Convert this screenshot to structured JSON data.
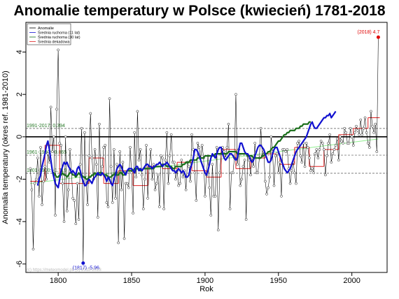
{
  "title": "Anomalie temperatury w Polsce (kwiecień) 1781-2018",
  "watermark": "(c) https://meteomodel.pl/ (c) 2018-2018",
  "colors": {
    "anomaly": "#000000",
    "ma11": "#1010d0",
    "ma30": "#1a6e1a",
    "decadal": "#e02020",
    "trend": "#90ee90",
    "refline": "#555555",
    "max_label": "#e00000",
    "min_label": "#1010d0"
  },
  "chart_data": {
    "type": "line",
    "title": "Anomalie temperatury w Polsce (kwiecień) 1781-2018",
    "xlabel": "Rok",
    "ylabel": "Anomalia temperatury (okres ref. 1981-2010)",
    "xlim": [
      1778,
      2024
    ],
    "ylim": [
      -6.4,
      5.4
    ],
    "xticks": [
      1800,
      1850,
      1900,
      1950,
      2000
    ],
    "yticks": [
      -6,
      -4,
      -2,
      0,
      2,
      4
    ],
    "grid": false,
    "legend_position": "top-left",
    "legend": [
      "Anomalie",
      "Średnia ruchoma (11 lat)",
      "Średnia ruchoma (30 lat)",
      "Średnia dekadowa"
    ],
    "zero_line": 0,
    "reference_lines": [
      {
        "label": "1991-2017: 0.394",
        "value": 0.394
      },
      {
        "label": "1961-1990: -0.865",
        "value": -0.865
      },
      {
        "label": "1801-1900: -1.719",
        "value": -1.719
      }
    ],
    "annotations": [
      {
        "label": "(2018) 4.7",
        "x": 2018,
        "y": 4.7,
        "kind": "max"
      },
      {
        "label": "(1817) -5.96",
        "x": 1817,
        "y": -5.96,
        "kind": "min"
      }
    ],
    "trend": {
      "start": [
        1781,
        -2.2
      ],
      "end": [
        2018,
        -0.1
      ]
    },
    "series": [
      {
        "name": "Anomalie",
        "kind": "anomaly",
        "x_start": 1781,
        "values": [
          -1.5,
          -2.5,
          -5.3,
          -2.2,
          -2.0,
          -1.0,
          -2.8,
          -0.5,
          -3.2,
          -2.1,
          -1.4,
          -2.0,
          -0.8,
          -1.2,
          1.4,
          -0.7,
          0.0,
          -3.7,
          1.3,
          4.1,
          -0.3,
          -0.4,
          -2.2,
          -4.0,
          0.0,
          -3.5,
          -2.5,
          -0.6,
          -1.6,
          -2.9,
          -3.0,
          -4.1,
          -2.2,
          -3.9,
          -1.3,
          0.4,
          -5.96,
          0.2,
          -2.2,
          -3.2,
          -0.9,
          1.1,
          -1.0,
          -2.0,
          -0.6,
          -1.3,
          -3.8,
          0.6,
          -1.8,
          -1.4,
          -0.5,
          -0.4,
          -3.1,
          -3.3,
          1.8,
          -1.4,
          -3.1,
          -0.6,
          -2.9,
          -1.3,
          -5.0,
          -0.7,
          -2.5,
          -1.2,
          -4.8,
          -2.2,
          -2.2,
          -2.4,
          -0.5,
          -1.7,
          -3.6,
          0.2,
          -1.9,
          1.2,
          -1.1,
          -0.6,
          -1.8,
          -3.4,
          -2.0,
          -0.4,
          -2.9,
          -1.4,
          -0.6,
          -2.0,
          -1.3,
          -2.5,
          -2.2,
          -1.8,
          -3.3,
          -0.9,
          -1.0,
          -3.4,
          -1.1,
          0.2,
          -2.2,
          -0.9,
          0.1,
          -1.2,
          -1.2,
          -2.0,
          -1.6,
          -2.3,
          -2.2,
          -1.1,
          -1.9,
          -1.6,
          -2.5,
          -1.2,
          -1.4,
          -2.1,
          0.1,
          -0.6,
          -1.7,
          -3.0,
          -0.3,
          -0.5,
          -1.0,
          -0.4,
          -1.0,
          -2.8,
          -1.8,
          -0.9,
          -2.4,
          -3.7,
          -1.3,
          -2.8,
          -2.8,
          -0.5,
          -4.4,
          -1.7,
          -0.8,
          -0.5,
          -0.7,
          -1.0,
          -0.5,
          0.6,
          -3.4,
          -1.7,
          -1.7,
          -1.0,
          2.0,
          -1.3,
          -0.6,
          -2.3,
          -2.0,
          -1.4,
          -1.1,
          -3.9,
          -0.9,
          -1.1,
          -1.8,
          -1.0,
          -1.4,
          -0.3,
          -1.7,
          -1.7,
          -1.0,
          0.4,
          -0.9,
          -0.7,
          -2.1,
          -2.7,
          -2.4,
          -1.9,
          0.0,
          -0.7,
          -2.3,
          -0.9,
          -0.8,
          -1.7,
          -1.2,
          -2.8,
          -0.6,
          -0.6,
          -0.7,
          -0.6,
          -1.5,
          -2.2,
          -1.6,
          -1.2,
          -1.7,
          -2.2,
          -0.3,
          -0.2,
          -0.9,
          -1.2,
          -0.3,
          -1.4,
          -0.3,
          -0.5,
          -1.0,
          -1.6,
          -1.5,
          -1.7,
          -0.8,
          -0.6,
          -1.0,
          -0.6,
          -0.2,
          -0.3,
          -0.6,
          -1.8,
          -0.9,
          -0.3,
          0.1,
          -1.2,
          -0.8,
          -0.6,
          -0.4,
          -0.1,
          -1.1,
          0.0,
          -0.2,
          -0.3,
          0.4,
          0.2,
          -0.3,
          -0.3,
          0.4,
          0.0,
          -0.4,
          0.2,
          0.5,
          0.3,
          0.1,
          0.8,
          0.1,
          0.4,
          0.9,
          0.2,
          -0.3,
          -0.5,
          1.2,
          0.5,
          0.2,
          0.6,
          -0.7,
          4.7
        ]
      },
      {
        "name": "Średnia ruchoma (11 lat)",
        "kind": "ma11",
        "x_start": 1786,
        "values": [
          -2.3,
          -2.0,
          -1.8,
          -1.4,
          -1.1,
          -0.8,
          -0.4,
          -0.2,
          -0.6,
          -1.1,
          -1.6,
          -1.9,
          -2.2,
          -2.3,
          -2.4,
          -2.0,
          -1.6,
          -1.4,
          -1.2,
          -1.3,
          -1.2,
          -1.4,
          -1.5,
          -1.7,
          -1.6,
          -1.7,
          -1.8,
          -1.5,
          -1.4,
          -1.6,
          -1.9,
          -2.1,
          -2.3,
          -2.3,
          -2.1,
          -2.0,
          -2.1,
          -2.2,
          -2.0,
          -1.9,
          -1.8,
          -1.7,
          -1.8,
          -1.8,
          -1.7,
          -1.8,
          -1.9,
          -2.1,
          -1.9,
          -2.0,
          -2.2,
          -2.3,
          -2.0,
          -1.8,
          -1.5,
          -1.4,
          -1.3,
          -1.4,
          -1.6,
          -1.7,
          -1.8,
          -1.6,
          -1.5,
          -1.5,
          -1.5,
          -1.6,
          -1.7,
          -1.4,
          -1.4,
          -1.6,
          -1.5,
          -1.6,
          -1.5,
          -1.4,
          -1.3,
          -1.3,
          -1.4,
          -1.4,
          -1.5,
          -1.4,
          -1.4,
          -1.3,
          -1.3,
          -1.2,
          -1.3,
          -1.4,
          -1.3,
          -1.3,
          -1.2,
          -1.3,
          -1.4,
          -1.5,
          -1.6,
          -1.6,
          -1.7,
          -1.6,
          -1.5,
          -1.6,
          -1.7,
          -1.6,
          -1.7,
          -1.9,
          -1.9,
          -1.8,
          -1.5,
          -1.3,
          -1.0,
          -0.6,
          -0.6,
          -0.7,
          -0.9,
          -1.1,
          -1.3,
          -1.5,
          -1.7,
          -1.8,
          -1.6,
          -1.3,
          -1.0,
          -0.8,
          -0.9,
          -1.0,
          -0.8,
          -0.6,
          -0.5,
          -0.5,
          -0.8,
          -1.0,
          -1.1,
          -1.0,
          -0.9,
          -0.8,
          -0.8,
          -0.9,
          -1.0,
          -1.1,
          -1.0,
          -0.6,
          -0.3,
          -0.3,
          -0.5,
          -0.7,
          -0.8,
          -0.8,
          -0.9,
          -1.1,
          -1.2,
          -1.1,
          -0.9,
          -0.7,
          -0.5,
          -0.4,
          -0.4,
          -0.5,
          -0.6,
          -0.8,
          -1.0,
          -1.2,
          -1.2,
          -1.1,
          -0.8,
          -0.6,
          -0.5,
          -0.5,
          -0.7,
          -0.9,
          -1.1,
          -1.3,
          -1.5,
          -1.6,
          -1.7,
          -1.6,
          -1.5,
          -1.3,
          -1.1,
          -0.9,
          -0.7,
          -0.6,
          -0.5,
          -0.4,
          -0.3,
          -0.2,
          -0.1,
          0.0,
          0.2,
          0.4,
          0.6,
          0.7,
          0.5,
          0.4,
          0.4,
          0.5,
          0.6,
          0.7,
          0.8,
          0.9,
          0.9,
          1.0,
          1.0,
          1.1,
          0.9,
          1.0,
          1.1,
          1.2
        ]
      },
      {
        "name": "Średnia ruchoma (30 lat)",
        "kind": "ma30",
        "x_start": 1796,
        "values": [
          -1.7,
          -1.7,
          -1.8,
          -1.9,
          -1.9,
          -1.8,
          -1.8,
          -1.7,
          -1.8,
          -1.8,
          -1.9,
          -1.8,
          -1.7,
          -1.7,
          -1.8,
          -1.8,
          -1.9,
          -1.8,
          -1.7,
          -1.8,
          -1.8,
          -1.9,
          -1.9,
          -2.0,
          -2.0,
          -1.9,
          -1.9,
          -1.8,
          -1.8,
          -1.7,
          -1.8,
          -1.8,
          -1.7,
          -1.7,
          -1.7,
          -1.8,
          -1.8,
          -1.8,
          -1.9,
          -1.9,
          -1.9,
          -1.8,
          -1.8,
          -1.7,
          -1.8,
          -1.8,
          -1.7,
          -1.7,
          -1.8,
          -1.8,
          -1.7,
          -1.6,
          -1.6,
          -1.6,
          -1.6,
          -1.6,
          -1.5,
          -1.5,
          -1.5,
          -1.5,
          -1.6,
          -1.6,
          -1.5,
          -1.5,
          -1.5,
          -1.5,
          -1.5,
          -1.5,
          -1.5,
          -1.5,
          -1.4,
          -1.4,
          -1.4,
          -1.4,
          -1.4,
          -1.3,
          -1.3,
          -1.3,
          -1.4,
          -1.4,
          -1.4,
          -1.4,
          -1.5,
          -1.5,
          -1.4,
          -1.4,
          -1.4,
          -1.4,
          -1.4,
          -1.3,
          -1.3,
          -1.2,
          -1.2,
          -1.2,
          -1.1,
          -1.1,
          -1.1,
          -1.1,
          -1.1,
          -1.0,
          -1.0,
          -1.0,
          -1.0,
          -1.0,
          -0.9,
          -0.9,
          -0.9,
          -0.9,
          -0.9,
          -0.9,
          -0.9,
          -0.8,
          -0.8,
          -0.8,
          -0.8,
          -0.8,
          -0.8,
          -0.8,
          -0.8,
          -0.8,
          -0.7,
          -0.7,
          -0.7,
          -0.7,
          -0.7,
          -0.7,
          -0.8,
          -0.8,
          -0.8,
          -0.8,
          -0.8,
          -0.8,
          -0.8,
          -0.9,
          -0.9,
          -0.9,
          -0.9,
          -1.0,
          -1.0,
          -1.0,
          -1.0,
          -1.0,
          -1.0,
          -0.9,
          -0.9,
          -0.8,
          -0.8,
          -0.7,
          -0.7,
          -0.6,
          -0.5,
          -0.5,
          -0.4,
          -0.3,
          -0.2,
          -0.2,
          -0.1,
          0.0,
          0.1,
          0.1,
          0.2,
          0.2,
          0.3,
          0.3,
          0.3,
          0.3,
          0.4,
          0.4,
          0.4,
          0.5,
          0.5,
          0.6,
          0.6,
          0.6,
          0.6,
          0.7,
          0.7
        ]
      },
      {
        "name": "Średnia dekadowa",
        "kind": "decadal",
        "decades": [
          [
            1781,
            1790,
            -2.1
          ],
          [
            1791,
            1800,
            -0.4
          ],
          [
            1801,
            1810,
            -2.2
          ],
          [
            1811,
            1820,
            -2.2
          ],
          [
            1821,
            1830,
            -1.0
          ],
          [
            1831,
            1840,
            -2.2
          ],
          [
            1841,
            1850,
            -1.6
          ],
          [
            1851,
            1860,
            -2.3
          ],
          [
            1861,
            1870,
            -1.4
          ],
          [
            1871,
            1880,
            -1.5
          ],
          [
            1881,
            1890,
            -1.2
          ],
          [
            1891,
            1900,
            -1.6
          ],
          [
            1901,
            1910,
            -1.9
          ],
          [
            1911,
            1920,
            -0.6
          ],
          [
            1921,
            1930,
            -1.5
          ],
          [
            1931,
            1940,
            -1.0
          ],
          [
            1941,
            1950,
            -0.8
          ],
          [
            1951,
            1960,
            -1.3
          ],
          [
            1961,
            1970,
            -0.5
          ],
          [
            1971,
            1980,
            -1.4
          ],
          [
            1981,
            1990,
            -0.6
          ],
          [
            1991,
            2000,
            0.1
          ],
          [
            2001,
            2010,
            0.4
          ],
          [
            2011,
            2018,
            0.9
          ]
        ]
      }
    ]
  }
}
